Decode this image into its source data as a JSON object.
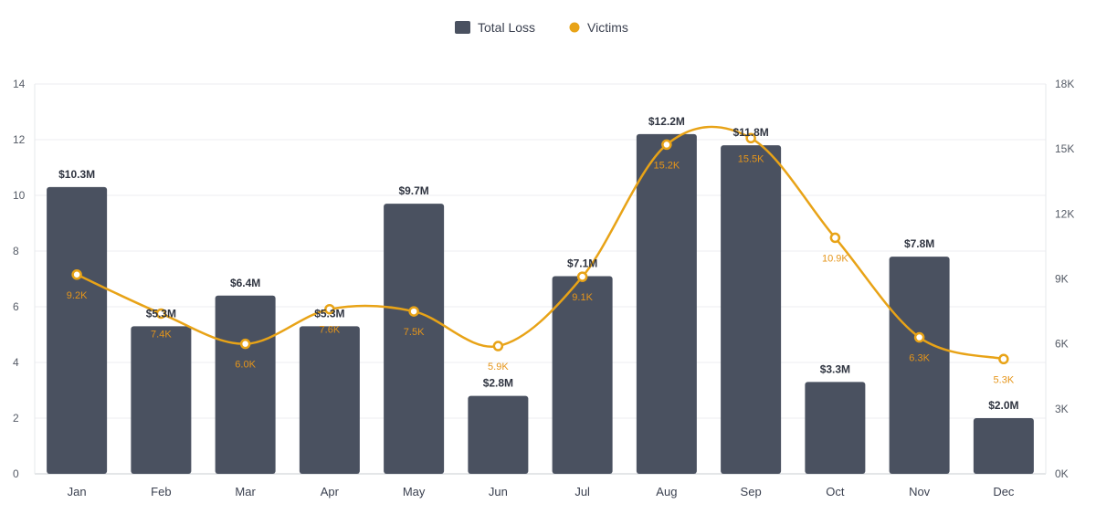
{
  "chart_data": {
    "type": "bar",
    "categories": [
      "Jan",
      "Feb",
      "Mar",
      "Apr",
      "May",
      "Jun",
      "Jul",
      "Aug",
      "Sep",
      "Oct",
      "Nov",
      "Dec"
    ],
    "series": [
      {
        "name": "Total Loss",
        "kind": "bar",
        "axis": "left",
        "values": [
          10.3,
          5.3,
          6.4,
          5.3,
          9.7,
          2.8,
          7.1,
          12.2,
          11.8,
          3.3,
          7.8,
          2.0
        ],
        "labels": [
          "$10.3M",
          "$5.3M",
          "$6.4M",
          "$5.3M",
          "$9.7M",
          "$2.8M",
          "$7.1M",
          "$12.2M",
          "$11.8M",
          "$3.3M",
          "$7.8M",
          "$2.0M"
        ],
        "color": "#4a5160"
      },
      {
        "name": "Victims",
        "kind": "line",
        "axis": "right",
        "values": [
          9200,
          7400,
          6000,
          7600,
          7500,
          5900,
          9100,
          15200,
          15500,
          10900,
          6300,
          5300
        ],
        "labels": [
          "9.2K",
          "7.4K",
          "6.0K",
          "7.6K",
          "7.5K",
          "5.9K",
          "9.1K",
          "15.2K",
          "15.5K",
          "10.9K",
          "6.3K",
          "5.3K"
        ],
        "color": "#e8a317"
      }
    ],
    "y_left": {
      "range": [
        0,
        14
      ],
      "ticks": [
        "0",
        "2",
        "4",
        "6",
        "8",
        "10",
        "12",
        "14"
      ]
    },
    "y_right": {
      "range": [
        0,
        18000
      ],
      "ticks": [
        "0K",
        "3K",
        "6K",
        "9K",
        "12K",
        "15K",
        "18K"
      ]
    },
    "legend": {
      "position": "top-center",
      "entries": [
        "Total Loss",
        "Victims"
      ]
    },
    "grid": true
  }
}
